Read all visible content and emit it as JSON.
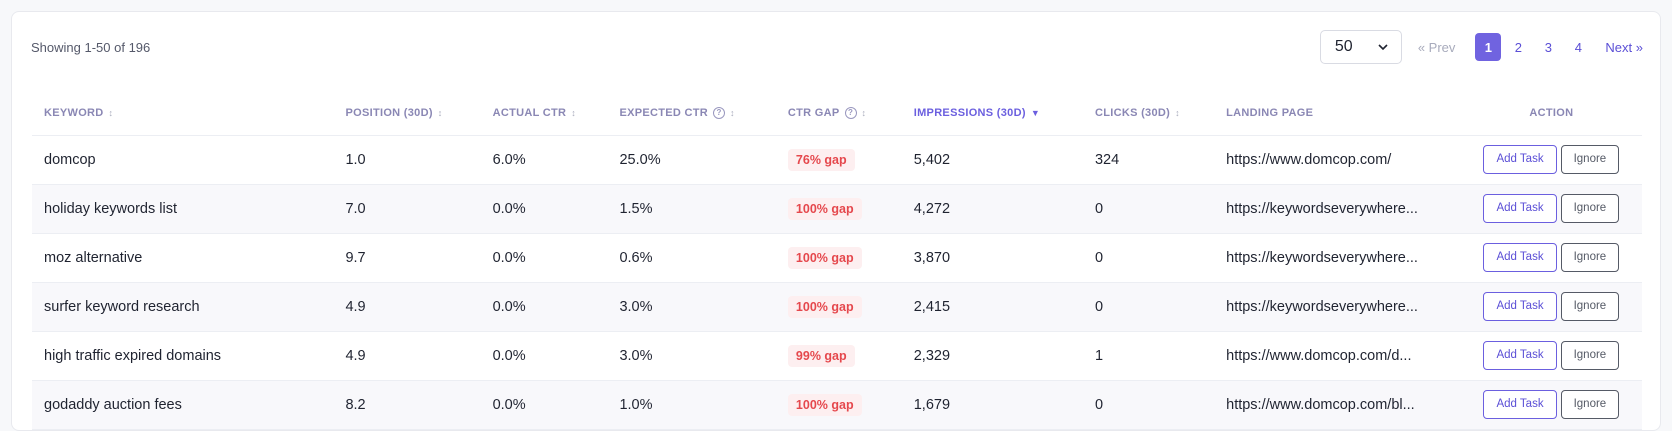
{
  "summary": {
    "showing_text": "Showing 1-50 of 196"
  },
  "page_size": {
    "value": "50"
  },
  "pagination": {
    "prev": "« Prev",
    "pages": [
      "1",
      "2",
      "3",
      "4"
    ],
    "current": "1",
    "next": "Next »"
  },
  "columns": {
    "keyword": "KEYWORD",
    "position": "POSITION (30D)",
    "actual_ctr": "ACTUAL CTR",
    "expected_ctr": "EXPECTED CTR",
    "ctr_gap": "CTR GAP",
    "impressions": "IMPRESSIONS (30D)",
    "clicks": "CLICKS (30D)",
    "landing_page": "LANDING PAGE",
    "action": "ACTION"
  },
  "sort_indicator": "↕",
  "sort_active_indicator": "▼",
  "help_glyph": "?",
  "buttons": {
    "add_task": "Add Task",
    "ignore": "Ignore"
  },
  "rows": [
    {
      "keyword": "domcop",
      "position": "1.0",
      "actual_ctr": "6.0%",
      "expected_ctr": "25.0%",
      "ctr_gap": "76% gap",
      "impressions": "5,402",
      "clicks": "324",
      "landing_page": "https://www.domcop.com/"
    },
    {
      "keyword": "holiday keywords list",
      "position": "7.0",
      "actual_ctr": "0.0%",
      "expected_ctr": "1.5%",
      "ctr_gap": "100% gap",
      "impressions": "4,272",
      "clicks": "0",
      "landing_page": "https://keywordseverywhere..."
    },
    {
      "keyword": "moz alternative",
      "position": "9.7",
      "actual_ctr": "0.0%",
      "expected_ctr": "0.6%",
      "ctr_gap": "100% gap",
      "impressions": "3,870",
      "clicks": "0",
      "landing_page": "https://keywordseverywhere..."
    },
    {
      "keyword": "surfer keyword research",
      "position": "4.9",
      "actual_ctr": "0.0%",
      "expected_ctr": "3.0%",
      "ctr_gap": "100% gap",
      "impressions": "2,415",
      "clicks": "0",
      "landing_page": "https://keywordseverywhere..."
    },
    {
      "keyword": "high traffic expired domains",
      "position": "4.9",
      "actual_ctr": "0.0%",
      "expected_ctr": "3.0%",
      "ctr_gap": "99% gap",
      "impressions": "2,329",
      "clicks": "1",
      "landing_page": "https://www.domcop.com/d..."
    },
    {
      "keyword": "godaddy auction fees",
      "position": "8.2",
      "actual_ctr": "0.0%",
      "expected_ctr": "1.0%",
      "ctr_gap": "100% gap",
      "impressions": "1,679",
      "clicks": "0",
      "landing_page": "https://www.domcop.com/bl..."
    }
  ]
}
